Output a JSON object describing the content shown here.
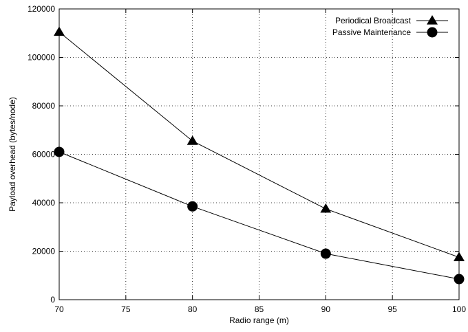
{
  "chart_data": {
    "type": "line",
    "title": "",
    "xlabel": "Radio range (m)",
    "ylabel": "Payload overhead (bytes/node)",
    "xlim": [
      70,
      100
    ],
    "ylim": [
      0,
      120000
    ],
    "x_ticks": [
      70,
      75,
      80,
      85,
      90,
      95,
      100
    ],
    "y_ticks": [
      0,
      20000,
      40000,
      60000,
      80000,
      100000,
      120000
    ],
    "grid": true,
    "legend_position": "top-right",
    "series": [
      {
        "name": "Periodical Broadcast",
        "marker": "triangle",
        "color": "#000000",
        "x": [
          70,
          80,
          90,
          100
        ],
        "values": [
          110500,
          65500,
          37500,
          17500
        ]
      },
      {
        "name": "Passive Maintenance",
        "marker": "circle",
        "color": "#000000",
        "x": [
          70,
          80,
          90,
          100
        ],
        "values": [
          61000,
          38500,
          19000,
          8500
        ]
      }
    ]
  }
}
